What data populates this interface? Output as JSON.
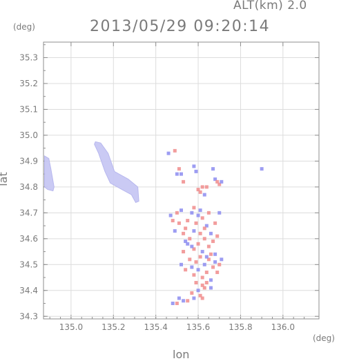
{
  "header": {
    "altitude_label": "ALT(km) 2.0",
    "datetime": "2013/05/29 09:20:14"
  },
  "chart_data": {
    "type": "scatter",
    "title": "2013/05/29 09:20:14",
    "subtitle": "ALT(km) 2.0",
    "xlabel": "lon",
    "ylabel": "lat",
    "xunit": "(deg)",
    "yunit": "(deg)",
    "xlim": [
      134.87,
      136.17
    ],
    "ylim": [
      34.29,
      35.36
    ],
    "xticks": [
      "135.0",
      "135.2",
      "135.4",
      "135.6",
      "135.8",
      "136.0"
    ],
    "yticks": [
      "34.3",
      "34.4",
      "34.5",
      "34.6",
      "34.7",
      "34.8",
      "34.9",
      "35.0",
      "35.1",
      "35.2",
      "35.3"
    ],
    "grid": true,
    "colors": {
      "positive": "#f08c8c",
      "negative": "#8c8cf0",
      "weak": "#c8c8f4",
      "axis": "#8c8c8c",
      "grid": "#dcdcdc",
      "text": "#7a7a7a"
    },
    "regions": [
      {
        "name": "west_band",
        "outline": [
          [
            134.875,
            34.92
          ],
          [
            134.895,
            34.91
          ],
          [
            134.905,
            34.87
          ],
          [
            134.92,
            34.8
          ],
          [
            134.915,
            34.785
          ],
          [
            134.89,
            34.79
          ],
          [
            134.875,
            34.8
          ]
        ]
      },
      {
        "name": "central_band",
        "outline": [
          [
            135.115,
            34.975
          ],
          [
            135.14,
            34.97
          ],
          [
            135.175,
            34.93
          ],
          [
            135.205,
            34.86
          ],
          [
            135.27,
            34.83
          ],
          [
            135.315,
            34.8
          ],
          [
            135.32,
            34.745
          ],
          [
            135.305,
            34.74
          ],
          [
            135.285,
            34.77
          ],
          [
            135.24,
            34.79
          ],
          [
            135.185,
            34.815
          ],
          [
            135.16,
            34.86
          ],
          [
            135.13,
            34.93
          ],
          [
            135.11,
            34.965
          ]
        ]
      }
    ],
    "points": [
      [
        135.46,
        34.93,
        0
      ],
      [
        135.49,
        34.94,
        1
      ],
      [
        135.5,
        34.85,
        0
      ],
      [
        135.51,
        34.87,
        1
      ],
      [
        135.52,
        34.85,
        0
      ],
      [
        135.53,
        34.82,
        1
      ],
      [
        135.58,
        34.88,
        0
      ],
      [
        135.59,
        34.86,
        0
      ],
      [
        135.6,
        34.79,
        1
      ],
      [
        135.61,
        34.78,
        1
      ],
      [
        135.62,
        34.8,
        1
      ],
      [
        135.63,
        34.77,
        0
      ],
      [
        135.67,
        34.87,
        0
      ],
      [
        135.68,
        34.83,
        0
      ],
      [
        135.69,
        34.82,
        1
      ],
      [
        135.7,
        34.81,
        1
      ],
      [
        135.71,
        34.82,
        0
      ],
      [
        135.64,
        34.8,
        1
      ],
      [
        135.9,
        34.87,
        0
      ],
      [
        135.47,
        34.69,
        0
      ],
      [
        135.48,
        34.67,
        1
      ],
      [
        135.49,
        34.63,
        0
      ],
      [
        135.5,
        34.7,
        1
      ],
      [
        135.51,
        34.66,
        1
      ],
      [
        135.52,
        34.71,
        0
      ],
      [
        135.53,
        34.62,
        1
      ],
      [
        135.54,
        34.64,
        1
      ],
      [
        135.55,
        34.58,
        0
      ],
      [
        135.55,
        34.67,
        1
      ],
      [
        135.56,
        34.6,
        1
      ],
      [
        135.57,
        34.7,
        0
      ],
      [
        135.58,
        34.56,
        1
      ],
      [
        135.58,
        34.63,
        0
      ],
      [
        135.59,
        34.66,
        1
      ],
      [
        135.6,
        34.58,
        1
      ],
      [
        135.6,
        34.69,
        0
      ],
      [
        135.61,
        34.62,
        1
      ],
      [
        135.62,
        34.55,
        0
      ],
      [
        135.62,
        34.68,
        1
      ],
      [
        135.63,
        34.6,
        1
      ],
      [
        135.64,
        34.65,
        0
      ],
      [
        135.65,
        34.57,
        1
      ],
      [
        135.65,
        34.7,
        1
      ],
      [
        135.66,
        34.62,
        0
      ],
      [
        135.67,
        34.59,
        1
      ],
      [
        135.68,
        34.66,
        1
      ],
      [
        135.68,
        34.54,
        0
      ],
      [
        135.56,
        34.52,
        1
      ],
      [
        135.57,
        34.49,
        0
      ],
      [
        135.58,
        34.46,
        1
      ],
      [
        135.59,
        34.51,
        1
      ],
      [
        135.6,
        34.48,
        0
      ],
      [
        135.61,
        34.53,
        1
      ],
      [
        135.62,
        34.45,
        1
      ],
      [
        135.63,
        34.5,
        0
      ],
      [
        135.64,
        34.47,
        1
      ],
      [
        135.65,
        34.52,
        1
      ],
      [
        135.66,
        34.44,
        0
      ],
      [
        135.67,
        34.49,
        1
      ],
      [
        135.68,
        34.51,
        0
      ],
      [
        135.69,
        34.47,
        1
      ],
      [
        135.7,
        34.5,
        1
      ],
      [
        135.71,
        34.52,
        0
      ],
      [
        135.62,
        34.42,
        1
      ],
      [
        135.63,
        34.41,
        1
      ],
      [
        135.64,
        34.43,
        1
      ],
      [
        135.6,
        34.4,
        0
      ],
      [
        135.61,
        34.38,
        1
      ],
      [
        135.62,
        34.37,
        1
      ],
      [
        135.58,
        34.37,
        0
      ],
      [
        135.55,
        34.36,
        1
      ],
      [
        135.53,
        34.36,
        0
      ],
      [
        135.5,
        34.35,
        1
      ],
      [
        135.48,
        34.35,
        0
      ],
      [
        135.51,
        34.37,
        0
      ],
      [
        135.57,
        34.39,
        1
      ],
      [
        135.66,
        34.41,
        0
      ],
      [
        135.59,
        34.43,
        1
      ],
      [
        135.54,
        34.59,
        0
      ],
      [
        135.53,
        34.55,
        1
      ],
      [
        135.52,
        34.5,
        0
      ],
      [
        135.54,
        34.48,
        1
      ],
      [
        135.7,
        34.7,
        0
      ],
      [
        135.69,
        34.61,
        1
      ],
      [
        135.66,
        34.54,
        1
      ],
      [
        135.57,
        34.57,
        0
      ],
      [
        135.63,
        34.64,
        1
      ],
      [
        135.61,
        34.71,
        0
      ],
      [
        135.58,
        34.72,
        1
      ],
      [
        135.64,
        34.53,
        0
      ]
    ]
  }
}
